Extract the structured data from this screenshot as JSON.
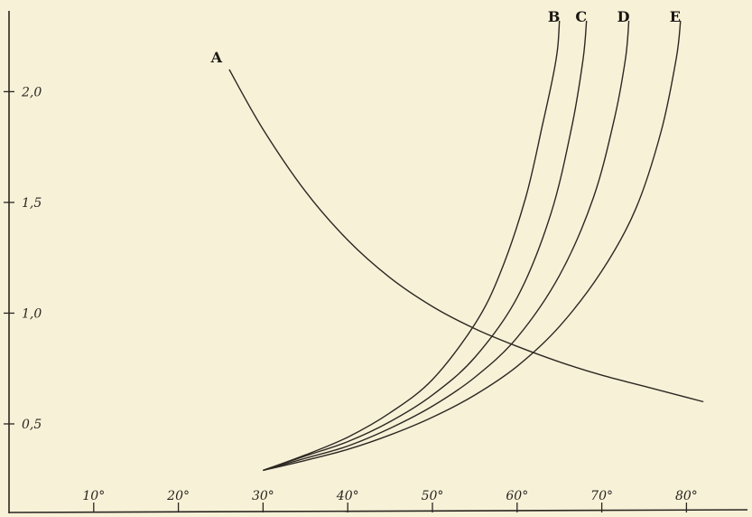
{
  "chart_data": {
    "type": "line",
    "title": "",
    "xlabel": "",
    "ylabel": "",
    "xlim": [
      0,
      85
    ],
    "ylim": [
      0.1,
      2.32
    ],
    "grid": false,
    "legend": "none",
    "x_ticks": [
      {
        "value": 10,
        "label": "10°"
      },
      {
        "value": 20,
        "label": "20°"
      },
      {
        "value": 30,
        "label": "30°"
      },
      {
        "value": 40,
        "label": "40°"
      },
      {
        "value": 50,
        "label": "50°"
      },
      {
        "value": 60,
        "label": "60°"
      },
      {
        "value": 70,
        "label": "70°"
      },
      {
        "value": 80,
        "label": "80°"
      }
    ],
    "y_ticks": [
      {
        "value": 0.5,
        "label": "0,5"
      },
      {
        "value": 1.0,
        "label": "1,0"
      },
      {
        "value": 1.5,
        "label": "1,5"
      },
      {
        "value": 2.0,
        "label": "2,0"
      }
    ],
    "series": [
      {
        "name": "A",
        "x": [
          26,
          30,
          35,
          40,
          45,
          50,
          55,
          60,
          65,
          70,
          75,
          82
        ],
        "y": [
          2.1,
          1.83,
          1.55,
          1.33,
          1.16,
          1.03,
          0.93,
          0.85,
          0.78,
          0.72,
          0.67,
          0.6
        ]
      },
      {
        "name": "B",
        "x": [
          30,
          35,
          40,
          45,
          50,
          55,
          58,
          61,
          63,
          64.3,
          64.8,
          65
        ],
        "y": [
          0.29,
          0.36,
          0.44,
          0.55,
          0.7,
          0.95,
          1.18,
          1.52,
          1.85,
          2.08,
          2.2,
          2.32
        ]
      },
      {
        "name": "C",
        "x": [
          30,
          35,
          40,
          45,
          50,
          55,
          60,
          64,
          66.5,
          67.8,
          68.2
        ],
        "y": [
          0.29,
          0.355,
          0.42,
          0.51,
          0.63,
          0.8,
          1.07,
          1.45,
          1.85,
          2.15,
          2.32
        ]
      },
      {
        "name": "D",
        "x": [
          30,
          35,
          40,
          45,
          50,
          55,
          60,
          65,
          69,
          71.5,
          72.8,
          73.2
        ],
        "y": [
          0.29,
          0.345,
          0.4,
          0.48,
          0.58,
          0.71,
          0.89,
          1.17,
          1.52,
          1.88,
          2.15,
          2.32
        ]
      },
      {
        "name": "E",
        "x": [
          30,
          35,
          40,
          45,
          50,
          55,
          60,
          65,
          70,
          74,
          77,
          78.8,
          79.3
        ],
        "y": [
          0.29,
          0.335,
          0.385,
          0.45,
          0.53,
          0.63,
          0.76,
          0.94,
          1.19,
          1.47,
          1.82,
          2.15,
          2.32
        ]
      }
    ]
  }
}
